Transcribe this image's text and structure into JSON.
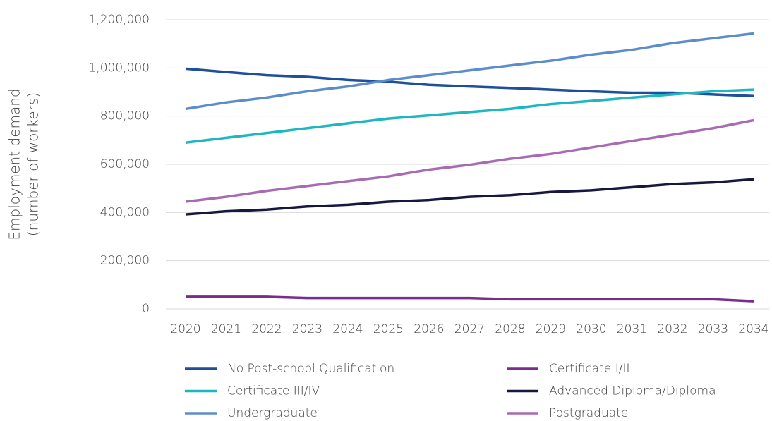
{
  "chart_data": {
    "type": "line",
    "ylabel": [
      "Employment demand",
      "(number of workers)"
    ],
    "categories": [
      "2020",
      "2021",
      "2022",
      "2023",
      "2024",
      "2025",
      "2026",
      "2027",
      "2028",
      "2029",
      "2030",
      "2031",
      "2032",
      "2033",
      "2034"
    ],
    "series": [
      {
        "name": "No Post-school Qualification",
        "color": "#1d4f9c",
        "values": [
          997000,
          983000,
          970000,
          963000,
          950000,
          943000,
          930000,
          923000,
          917000,
          910000,
          903000,
          897000,
          897000,
          890000,
          883000
        ]
      },
      {
        "name": "Certificate I/II",
        "color": "#7a2d8f",
        "values": [
          50000,
          50000,
          50000,
          45000,
          45000,
          45000,
          45000,
          45000,
          40000,
          40000,
          40000,
          40000,
          40000,
          40000,
          32000
        ]
      },
      {
        "name": "Certificate III/IV",
        "color": "#1db6c1",
        "values": [
          690000,
          710000,
          730000,
          750000,
          770000,
          790000,
          803000,
          817000,
          830000,
          850000,
          863000,
          877000,
          890000,
          903000,
          910000
        ]
      },
      {
        "name": "Advanced Diploma/Diploma",
        "color": "#17173f",
        "values": [
          392000,
          405000,
          412000,
          425000,
          432000,
          445000,
          452000,
          465000,
          472000,
          485000,
          492000,
          505000,
          518000,
          525000,
          538000
        ]
      },
      {
        "name": "Undergraduate",
        "color": "#5b8ccc",
        "values": [
          830000,
          857000,
          877000,
          903000,
          923000,
          950000,
          970000,
          990000,
          1010000,
          1030000,
          1055000,
          1075000,
          1103000,
          1123000,
          1143000
        ]
      },
      {
        "name": "Postgraduate",
        "color": "#a86bb3",
        "values": [
          445000,
          465000,
          490000,
          510000,
          530000,
          550000,
          578000,
          598000,
          623000,
          643000,
          670000,
          697000,
          723000,
          750000,
          783000
        ]
      }
    ],
    "ylim": [
      0,
      1200000
    ],
    "yticks": [
      0,
      {
        "value": 200000,
        "label": "200,000"
      },
      {
        "value": 400000,
        "label": "400,000"
      },
      {
        "value": 600000,
        "label": "600,000"
      },
      {
        "value": 800000,
        "label": "800,000"
      },
      {
        "value": 1000000,
        "label": "1,000,000"
      },
      {
        "value": 1200000,
        "label": "1,200,000"
      }
    ],
    "grid": true
  }
}
